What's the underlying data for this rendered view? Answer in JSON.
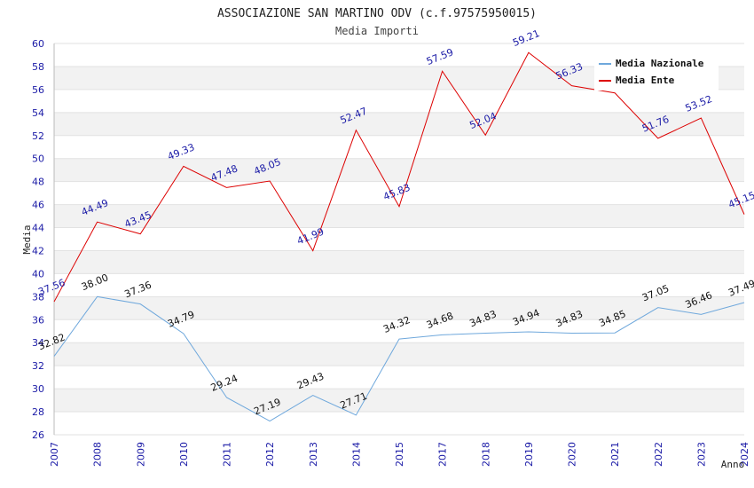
{
  "chart_data": {
    "type": "line",
    "title": "ASSOCIAZIONE SAN MARTINO ODV (c.f.97575950015)",
    "subtitle": "Media Importi",
    "xlabel": "Anno",
    "ylabel": "Media",
    "ylim": [
      26,
      60
    ],
    "yticks": [
      "26",
      "28",
      "30",
      "32",
      "34",
      "36",
      "38",
      "40",
      "42",
      "44",
      "46",
      "48",
      "50",
      "52",
      "54",
      "56",
      "58",
      "60"
    ],
    "categories": [
      "2007",
      "2008",
      "2009",
      "2010",
      "2011",
      "2012",
      "2013",
      "2014",
      "2015",
      "2017",
      "2018",
      "2019",
      "2020",
      "2021",
      "2022",
      "2023",
      "2024"
    ],
    "grid": "horizontal bands",
    "legend_position": "top-right",
    "series": [
      {
        "name": "Media Nazionale",
        "color": "#6fa8dc",
        "values": [
          32.82,
          38.0,
          37.36,
          34.79,
          29.24,
          27.19,
          29.43,
          27.71,
          34.32,
          34.68,
          34.83,
          34.94,
          34.83,
          34.85,
          37.05,
          36.46,
          37.49
        ],
        "labels": [
          "32.82",
          "38.00",
          "37.36",
          "34.79",
          "29.24",
          "27.19",
          "29.43",
          "27.71",
          "34.32",
          "34.68",
          "34.83",
          "34.94",
          "34.83",
          "34.85",
          "37.05",
          "36.46",
          "37.49"
        ]
      },
      {
        "name": "Media Ente",
        "color": "#dd0000",
        "values": [
          37.56,
          44.49,
          43.45,
          49.33,
          47.48,
          48.05,
          41.99,
          52.47,
          45.83,
          57.59,
          52.04,
          59.21,
          56.33,
          55.7,
          51.76,
          53.52,
          45.15
        ],
        "labels": [
          "37.56",
          "44.49",
          "43.45",
          "49.33",
          "47.48",
          "48.05",
          "41.99",
          "52.47",
          "45.83",
          "57.59",
          "52.04",
          "59.21",
          "56.33",
          "",
          "51.76",
          "53.52",
          "45.15"
        ]
      }
    ]
  }
}
